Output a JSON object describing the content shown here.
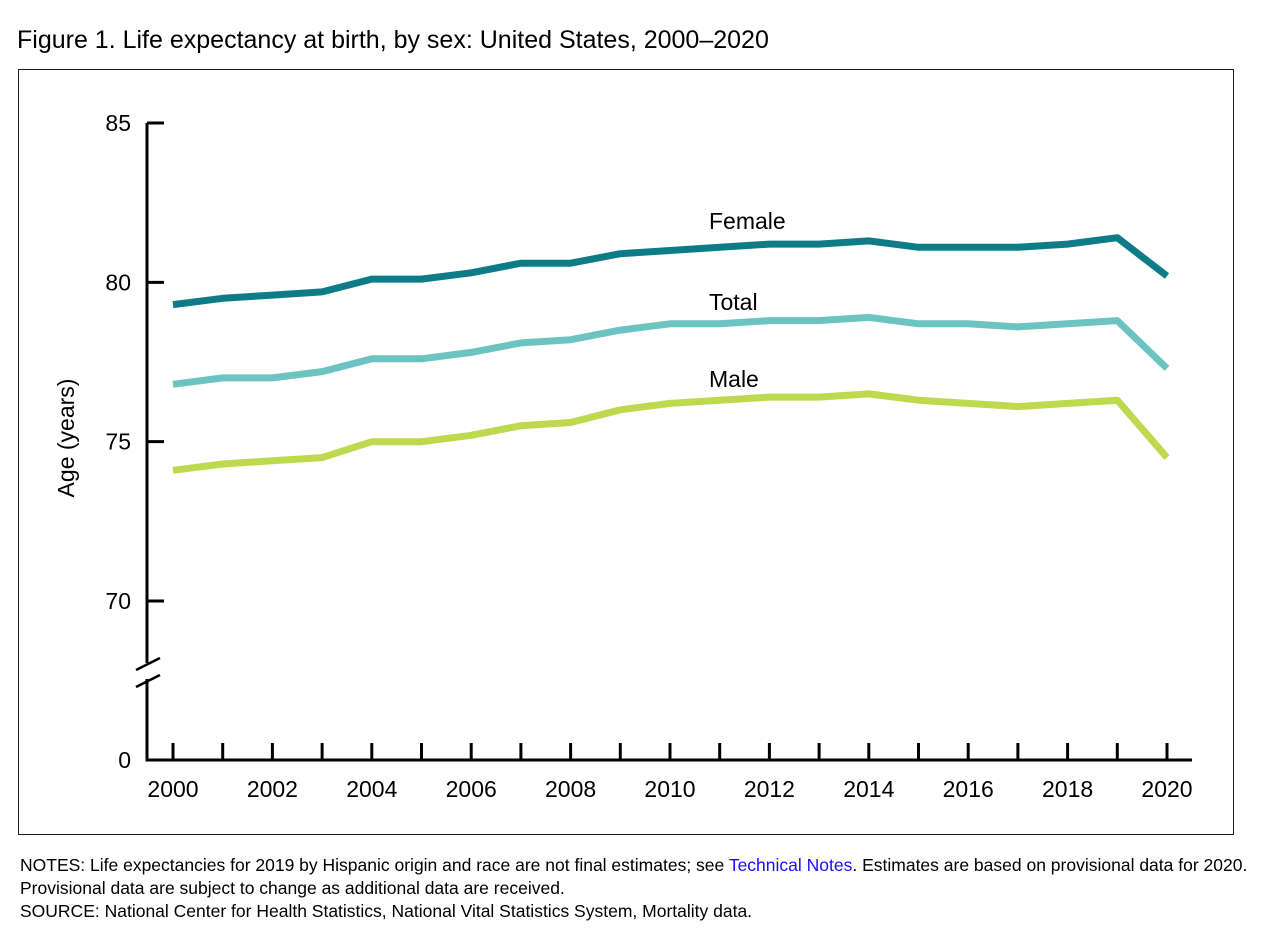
{
  "figure": {
    "title": "Figure 1. Life expectancy at birth, by sex: United States, 2000–2020"
  },
  "notes": {
    "notes_prefix": "NOTES: Life expectancies for 2019 by Hispanic origin and race are not final estimates; see ",
    "notes_link": "Technical Notes",
    "notes_suffix": ". Estimates are based on provisional data for 2020. Provisional data are subject to change as additional data are received.",
    "source": "SOURCE: National Center for Health Statistics, National Vital Statistics System, Mortality data."
  },
  "chart_data": {
    "type": "line",
    "title": "Figure 1. Life expectancy at birth, by sex: United States, 2000–2020",
    "xlabel": "",
    "ylabel": "Age (years)",
    "x": [
      2000,
      2001,
      2002,
      2003,
      2004,
      2005,
      2006,
      2007,
      2008,
      2009,
      2010,
      2011,
      2012,
      2013,
      2014,
      2015,
      2016,
      2017,
      2018,
      2019,
      2020
    ],
    "x_ticks": [
      "2000",
      "2002",
      "2004",
      "2006",
      "2008",
      "2010",
      "2012",
      "2014",
      "2016",
      "2018",
      "2020"
    ],
    "y_ticks": [
      "0",
      "70",
      "75",
      "80",
      "85"
    ],
    "ylim": [
      70,
      85
    ],
    "y_axis_break": true,
    "grid": false,
    "legend": "inline labels",
    "series": [
      {
        "name": "Female",
        "color": "#0e7c86",
        "values": [
          79.3,
          79.5,
          79.6,
          79.7,
          80.1,
          80.1,
          80.3,
          80.6,
          80.6,
          80.9,
          81.0,
          81.1,
          81.2,
          81.2,
          81.3,
          81.1,
          81.1,
          81.1,
          81.2,
          81.4,
          80.2
        ]
      },
      {
        "name": "Total",
        "color": "#6cc4c2",
        "values": [
          76.8,
          77.0,
          77.0,
          77.2,
          77.6,
          77.6,
          77.8,
          78.1,
          78.2,
          78.5,
          78.7,
          78.7,
          78.8,
          78.8,
          78.9,
          78.7,
          78.7,
          78.6,
          78.7,
          78.8,
          77.3
        ]
      },
      {
        "name": "Male",
        "color": "#bfd94e",
        "values": [
          74.1,
          74.3,
          74.4,
          74.5,
          75.0,
          75.0,
          75.2,
          75.5,
          75.6,
          76.0,
          76.2,
          76.3,
          76.4,
          76.4,
          76.5,
          76.3,
          76.2,
          76.1,
          76.2,
          76.3,
          74.5
        ]
      }
    ]
  }
}
